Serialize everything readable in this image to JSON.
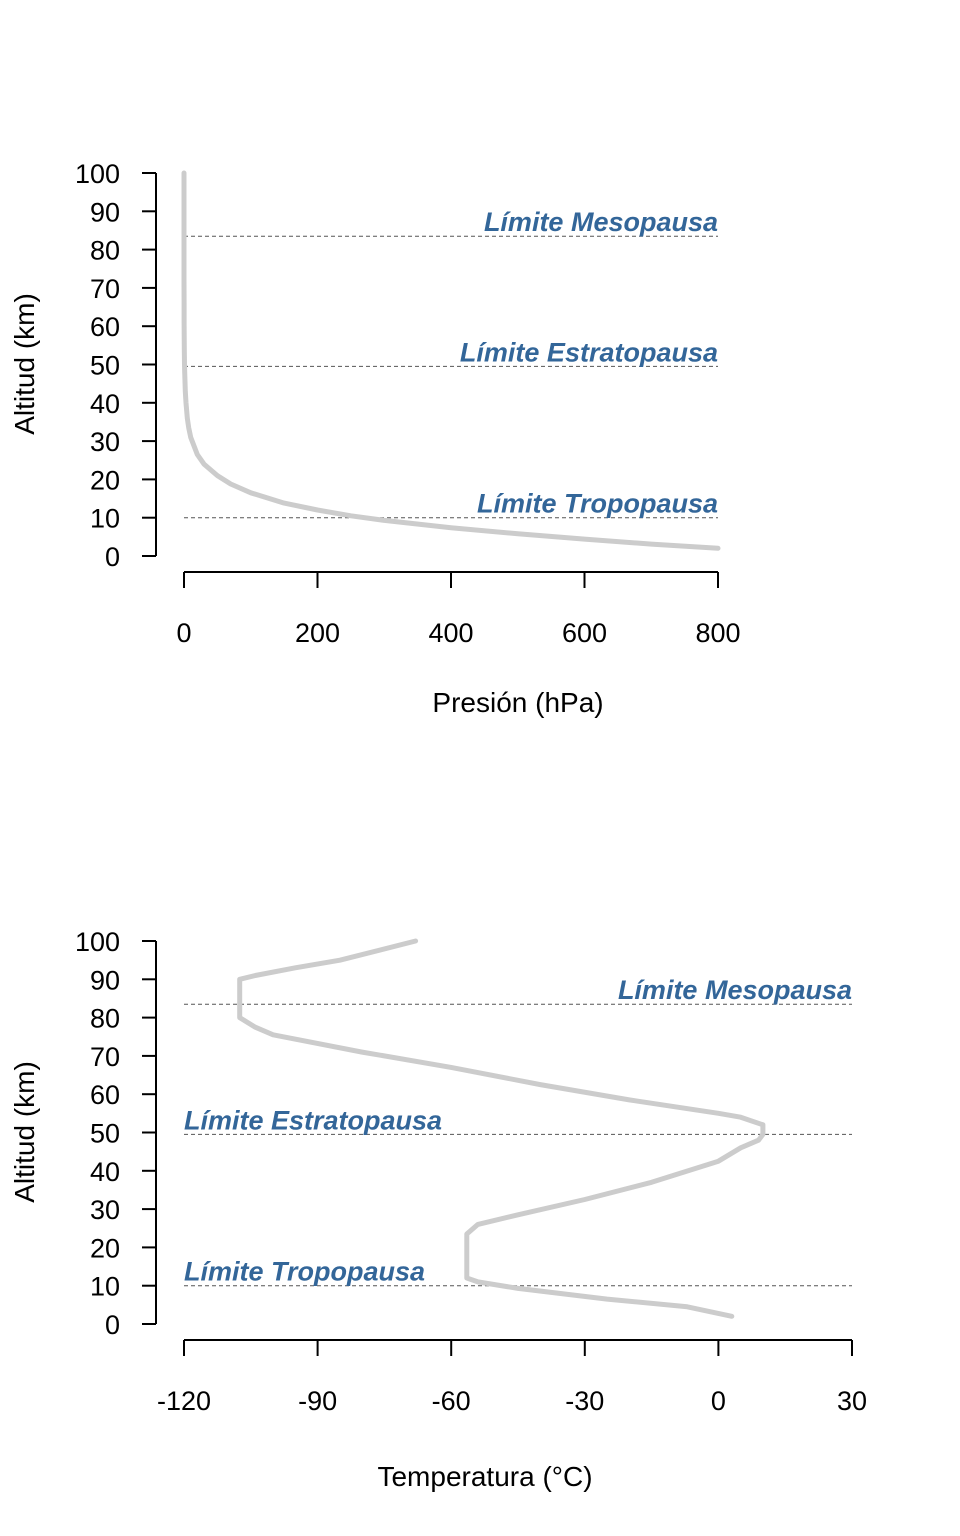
{
  "colors": {
    "curve": "#cccccc",
    "boundary_label": "#336699",
    "boundary_line": "#555555",
    "axis": "#000000"
  },
  "chart_data": [
    {
      "type": "line",
      "title": "",
      "xlabel": "Presión (hPa)",
      "ylabel": "Altitud (km)",
      "xlim": [
        0,
        800
      ],
      "ylim": [
        0,
        100
      ],
      "x_ticks": [
        "0",
        "200",
        "400",
        "600",
        "800"
      ],
      "y_ticks": [
        "0",
        "10",
        "20",
        "30",
        "40",
        "50",
        "60",
        "70",
        "80",
        "90",
        "100"
      ],
      "grid": false,
      "series": [
        {
          "x": [
            800,
            700,
            600,
            500,
            400,
            300,
            250,
            200,
            150,
            100,
            70,
            50,
            30,
            20,
            10,
            7,
            5,
            3,
            2,
            1,
            0.8,
            0.5,
            0.2,
            0.1,
            0.05,
            0.03,
            0.01
          ],
          "y": [
            2,
            3.1,
            4.4,
            5.8,
            7.4,
            9.3,
            10.5,
            12,
            13.8,
            16.5,
            18.8,
            21,
            24,
            26.5,
            31,
            33.5,
            36,
            40,
            43,
            48,
            50,
            54,
            61,
            66,
            72,
            77,
            100
          ]
        }
      ],
      "annotations": [
        {
          "label": "Límite Mesopausa",
          "y": 83.5
        },
        {
          "label": "Límite Estratopausa",
          "y": 49.5
        },
        {
          "label": "Límite Tropopausa",
          "y": 10
        }
      ]
    },
    {
      "type": "line",
      "title": "",
      "xlabel": "Temperatura (°C)",
      "ylabel": "Altitud (km)",
      "xlim": [
        -120,
        30
      ],
      "ylim": [
        0,
        100
      ],
      "x_ticks": [
        "-120",
        "-90",
        "-60",
        "-30",
        "0",
        "30"
      ],
      "y_ticks": [
        "0",
        "10",
        "20",
        "30",
        "40",
        "50",
        "60",
        "70",
        "80",
        "90",
        "100"
      ],
      "grid": false,
      "series": [
        {
          "x": [
            3,
            -7,
            -25,
            -45,
            -54,
            -56.5,
            -56.5,
            -54,
            -45,
            -30,
            -15,
            0,
            5,
            9,
            10,
            10,
            5,
            0,
            -20,
            -40,
            -60,
            -80,
            -100,
            -104,
            -107.5,
            -107.5,
            -104,
            -95,
            -85,
            -68
          ],
          "y": [
            2,
            4.5,
            6.5,
            9.3,
            11,
            12,
            23.5,
            26,
            28.5,
            32.5,
            37,
            42.5,
            46,
            48,
            49.5,
            52,
            54,
            55,
            58.5,
            62.5,
            67,
            71,
            75.5,
            77.5,
            80,
            90,
            91,
            93,
            95,
            100
          ]
        }
      ],
      "annotations": [
        {
          "label": "Límite Mesopausa",
          "y": 83.5
        },
        {
          "label": "Límite Estratopausa",
          "y": 49.5
        },
        {
          "label": "Límite Tropopausa",
          "y": 10
        }
      ]
    }
  ]
}
